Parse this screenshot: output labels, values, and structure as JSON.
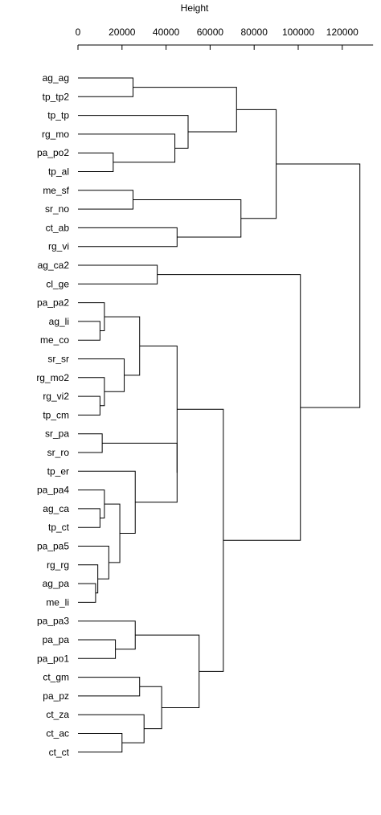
{
  "chart_data": {
    "type": "dendrogram",
    "title": "",
    "axis": {
      "label": "Height",
      "range": [
        0,
        134000
      ],
      "ticks": [
        0,
        20000,
        40000,
        60000,
        80000,
        100000,
        120000
      ]
    },
    "leaves": [
      "ag_ag",
      "tp_tp2",
      "tp_tp",
      "rg_mo",
      "pa_po2",
      "tp_al",
      "me_sf",
      "sr_no",
      "ct_ab",
      "rg_vi",
      "ag_ca2",
      "cl_ge",
      "pa_pa2",
      "ag_li",
      "me_co",
      "sr_sr",
      "rg_mo2",
      "rg_vi2",
      "tp_cm",
      "sr_pa",
      "sr_ro",
      "tp_er",
      "pa_pa4",
      "ag_ca",
      "tp_ct",
      "pa_pa5",
      "rg_rg",
      "ag_pa",
      "me_li",
      "pa_pa3",
      "pa_pa",
      "pa_po1",
      "ct_gm",
      "pa_pz",
      "ct_za",
      "ct_ac",
      "ct_ct"
    ],
    "merges": [
      {
        "id": "n1",
        "a": "ag_ag",
        "b": "tp_tp2",
        "height": 25000
      },
      {
        "id": "n2",
        "a": "pa_po2",
        "b": "tp_al",
        "height": 16000
      },
      {
        "id": "n3",
        "a": "rg_mo",
        "b": "n2",
        "height": 44000
      },
      {
        "id": "n4",
        "a": "tp_tp",
        "b": "n3",
        "height": 50000
      },
      {
        "id": "n5",
        "a": "n1",
        "b": "n4",
        "height": 72000
      },
      {
        "id": "n6",
        "a": "me_sf",
        "b": "sr_no",
        "height": 25000
      },
      {
        "id": "n7",
        "a": "ct_ab",
        "b": "rg_vi",
        "height": 45000
      },
      {
        "id": "n8",
        "a": "n6",
        "b": "n7",
        "height": 74000
      },
      {
        "id": "n9",
        "a": "n5",
        "b": "n8",
        "height": 90000
      },
      {
        "id": "n10",
        "a": "ag_ca2",
        "b": "cl_ge",
        "height": 36000
      },
      {
        "id": "n11",
        "a": "ag_li",
        "b": "me_co",
        "height": 10000
      },
      {
        "id": "n12",
        "a": "pa_pa2",
        "b": "n11",
        "height": 12000
      },
      {
        "id": "n13",
        "a": "rg_vi2",
        "b": "tp_cm",
        "height": 10000
      },
      {
        "id": "n14",
        "a": "rg_mo2",
        "b": "n13",
        "height": 12000
      },
      {
        "id": "n15",
        "a": "sr_sr",
        "b": "n14",
        "height": 21000
      },
      {
        "id": "n16",
        "a": "n12",
        "b": "n15",
        "height": 28000
      },
      {
        "id": "n17",
        "a": "sr_pa",
        "b": "sr_ro",
        "height": 11000
      },
      {
        "id": "n18",
        "a": "ag_ca",
        "b": "tp_ct",
        "height": 10000
      },
      {
        "id": "n19",
        "a": "pa_pa4",
        "b": "n18",
        "height": 12000
      },
      {
        "id": "n20",
        "a": "ag_pa",
        "b": "me_li",
        "height": 8000
      },
      {
        "id": "n21",
        "a": "rg_rg",
        "b": "n20",
        "height": 9000
      },
      {
        "id": "n22",
        "a": "pa_pa5",
        "b": "n21",
        "height": 14000
      },
      {
        "id": "n23",
        "a": "n19",
        "b": "n22",
        "height": 19000
      },
      {
        "id": "n24",
        "a": "tp_er",
        "b": "n23",
        "height": 26000
      },
      {
        "id": "n25",
        "a": "n17",
        "b": "n24",
        "height": 45000
      },
      {
        "id": "n26",
        "a": "n16",
        "b": "n25",
        "height": 45000
      },
      {
        "id": "n27",
        "a": "pa_pa",
        "b": "pa_po1",
        "height": 17000
      },
      {
        "id": "n28",
        "a": "pa_pa3",
        "b": "n27",
        "height": 26000
      },
      {
        "id": "n29",
        "a": "ct_gm",
        "b": "pa_pz",
        "height": 28000
      },
      {
        "id": "n30",
        "a": "ct_ac",
        "b": "ct_ct",
        "height": 20000
      },
      {
        "id": "n31",
        "a": "ct_za",
        "b": "n30",
        "height": 30000
      },
      {
        "id": "n32",
        "a": "n29",
        "b": "n31",
        "height": 38000
      },
      {
        "id": "n33",
        "a": "n28",
        "b": "n32",
        "height": 55000
      },
      {
        "id": "n34",
        "a": "n26",
        "b": "n33",
        "height": 66000
      },
      {
        "id": "n35",
        "a": "n10",
        "b": "n34",
        "height": 101000
      },
      {
        "id": "n36",
        "a": "n9",
        "b": "n35",
        "height": 128000
      }
    ]
  }
}
